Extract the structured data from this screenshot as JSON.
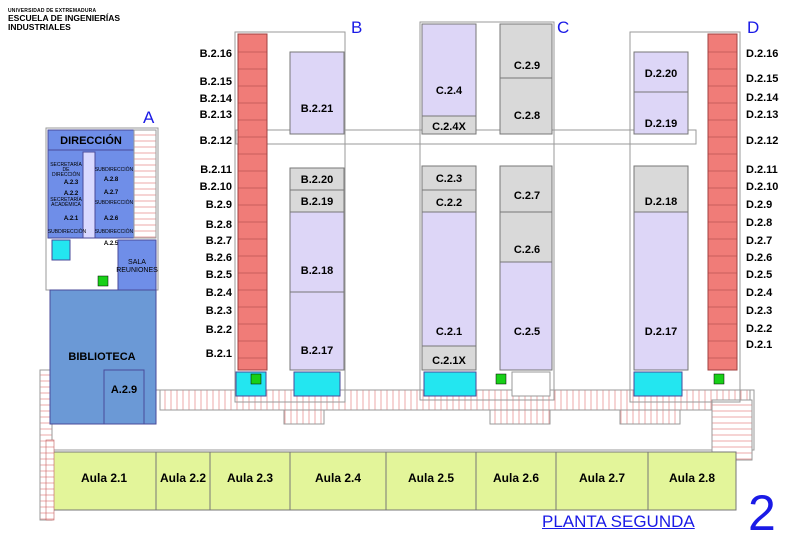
{
  "header": {
    "university": "UNIVERSIDAD DE EXTREMADURA",
    "school_line1": "ESCUELA DE INGENIERÍAS",
    "school_line2": "INDUSTRIALES"
  },
  "footer": {
    "floor_label": "PLANTA SEGUNDA",
    "floor_number": "2"
  },
  "wings": {
    "A": "A",
    "B": "B",
    "C": "C",
    "D": "D"
  },
  "colors": {
    "office_blue": "#6f8ee8",
    "library_blue": "#6b99d6",
    "room_lavender": "#ddd6f7",
    "room_grey": "#d9d9d9",
    "office_red": "#f07c78",
    "aula_green": "#e3f59a",
    "wc_cyan": "#23e6f0",
    "accent_green": "#18d018",
    "wing_label_blue": "#1a1ae6"
  },
  "wing_a": {
    "direccion": "DIRECCIÓN",
    "secretaria_direccion": [
      "SECRETARÍA",
      "DE",
      "DIRECCIÓN"
    ],
    "secretaria_academica": [
      "SECRETARÍA",
      "ACADÉMICA"
    ],
    "subdireccion": "SUBDIRECCIÓN",
    "rooms": [
      "A.2.3",
      "A.2.2",
      "A.2.1",
      "A.2.8",
      "A.2.7",
      "A.2.6",
      "A.2.5"
    ],
    "sala_reuniones": [
      "SALA",
      "REUNIONES"
    ],
    "biblioteca": "BIBLIOTECA",
    "a29": "A.2.9"
  },
  "wing_b": {
    "offices": [
      "B.2.16",
      "B.2.15",
      "B.2.14",
      "B.2.13",
      "B.2.12",
      "B.2.11",
      "B.2.10",
      "B.2.9",
      "B.2.8",
      "B.2.7",
      "B.2.6",
      "B.2.5",
      "B.2.4",
      "B.2.3",
      "B.2.2",
      "B.2.1"
    ],
    "rooms": [
      "B.2.21",
      "B.2.20",
      "B.2.19",
      "B.2.18",
      "B.2.17"
    ]
  },
  "wing_c": {
    "rooms": [
      "C.2.4",
      "C.2.4X",
      "C.2.3",
      "C.2.2",
      "C.2.1",
      "C.2.1X",
      "C.2.9",
      "C.2.8",
      "C.2.7",
      "C.2.6",
      "C.2.5"
    ]
  },
  "wing_d": {
    "offices": [
      "D.2.16",
      "D.2.15",
      "D.2.14",
      "D.2.13",
      "D.2.12",
      "D.2.11",
      "D.2.10",
      "D.2.9",
      "D.2.8",
      "D.2.7",
      "D.2.6",
      "D.2.5",
      "D.2.4",
      "D.2.3",
      "D.2.2",
      "D.2.1"
    ],
    "rooms": [
      "D.2.20",
      "D.2.19",
      "D.2.18",
      "D.2.17"
    ]
  },
  "aulas": [
    "Aula 2.1",
    "Aula 2.2",
    "Aula 2.3",
    "Aula 2.4",
    "Aula 2.5",
    "Aula 2.6",
    "Aula 2.7",
    "Aula 2.8"
  ]
}
